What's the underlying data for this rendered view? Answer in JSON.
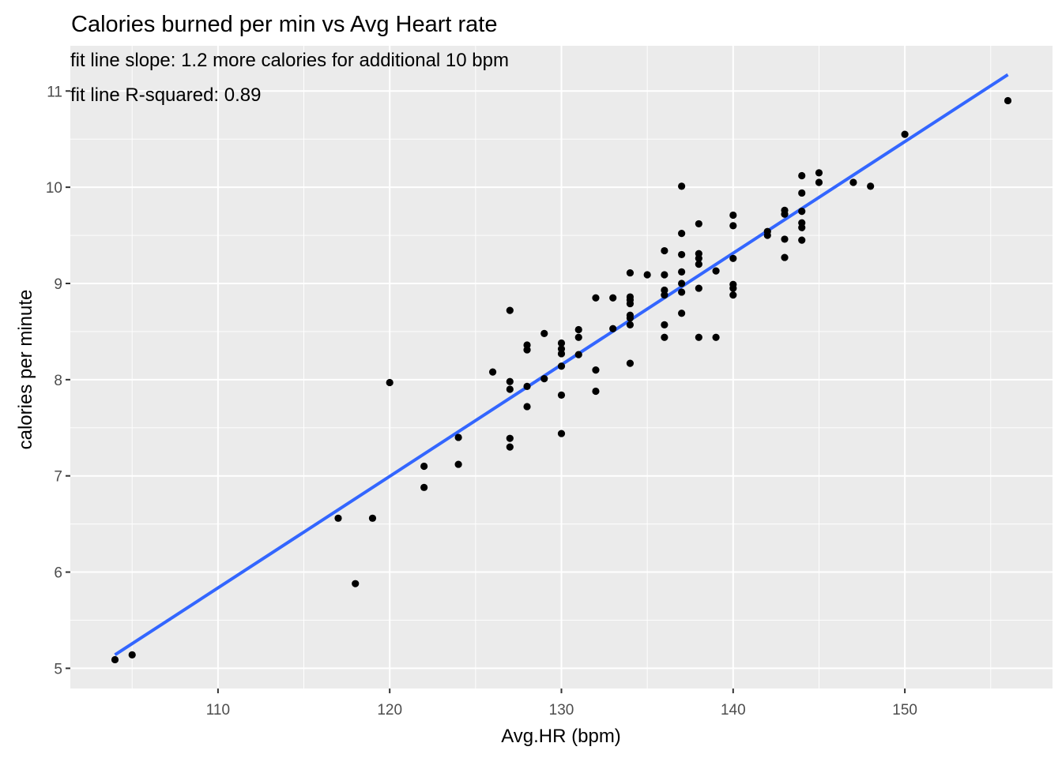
{
  "chart_data": {
    "type": "scatter",
    "title": "Calories burned per min vs Avg Heart rate",
    "annotations": [
      "fit line slope:  1.2  more calories for additional 10 bpm",
      "fit line R-squared: 0.89"
    ],
    "xlabel": "Avg.HR (bpm)",
    "ylabel": "calories per minute",
    "xlim": [
      101.4,
      158.6
    ],
    "ylim": [
      4.79,
      11.47
    ],
    "x_ticks": [
      110,
      120,
      130,
      140,
      150
    ],
    "y_ticks": [
      5,
      6,
      7,
      8,
      9,
      10,
      11
    ],
    "grid": true,
    "legend": "none",
    "colors": {
      "panel_background": "#ebebeb",
      "grid": "#ffffff",
      "points": "#000000",
      "fit_line": "#3366ff"
    },
    "fit_line": {
      "x": [
        104,
        156
      ],
      "y": [
        5.14,
        11.17
      ]
    },
    "points": [
      {
        "x": 104,
        "y": 5.09
      },
      {
        "x": 105,
        "y": 5.14
      },
      {
        "x": 117,
        "y": 6.56
      },
      {
        "x": 118,
        "y": 5.88
      },
      {
        "x": 119,
        "y": 6.56
      },
      {
        "x": 120,
        "y": 7.97
      },
      {
        "x": 122,
        "y": 7.1
      },
      {
        "x": 122,
        "y": 6.88
      },
      {
        "x": 124,
        "y": 7.4
      },
      {
        "x": 124,
        "y": 7.12
      },
      {
        "x": 126,
        "y": 8.08
      },
      {
        "x": 127,
        "y": 8.72
      },
      {
        "x": 127,
        "y": 7.98
      },
      {
        "x": 127,
        "y": 7.9
      },
      {
        "x": 127,
        "y": 7.39
      },
      {
        "x": 127,
        "y": 7.3
      },
      {
        "x": 128,
        "y": 8.36
      },
      {
        "x": 128,
        "y": 8.31
      },
      {
        "x": 128,
        "y": 7.93
      },
      {
        "x": 128,
        "y": 7.72
      },
      {
        "x": 129,
        "y": 8.48
      },
      {
        "x": 129,
        "y": 8.01
      },
      {
        "x": 130,
        "y": 8.38
      },
      {
        "x": 130,
        "y": 8.32
      },
      {
        "x": 130,
        "y": 8.27
      },
      {
        "x": 130,
        "y": 8.14
      },
      {
        "x": 130,
        "y": 7.84
      },
      {
        "x": 130,
        "y": 7.44
      },
      {
        "x": 131,
        "y": 8.52
      },
      {
        "x": 131,
        "y": 8.44
      },
      {
        "x": 131,
        "y": 8.26
      },
      {
        "x": 132,
        "y": 8.85
      },
      {
        "x": 132,
        "y": 8.1
      },
      {
        "x": 132,
        "y": 7.88
      },
      {
        "x": 133,
        "y": 8.85
      },
      {
        "x": 133,
        "y": 8.53
      },
      {
        "x": 134,
        "y": 9.11
      },
      {
        "x": 134,
        "y": 8.86
      },
      {
        "x": 134,
        "y": 8.83
      },
      {
        "x": 134,
        "y": 8.79
      },
      {
        "x": 134,
        "y": 8.67
      },
      {
        "x": 134,
        "y": 8.64
      },
      {
        "x": 134,
        "y": 8.57
      },
      {
        "x": 134,
        "y": 8.17
      },
      {
        "x": 135,
        "y": 9.09
      },
      {
        "x": 136,
        "y": 9.34
      },
      {
        "x": 136,
        "y": 9.09
      },
      {
        "x": 136,
        "y": 8.93
      },
      {
        "x": 136,
        "y": 8.88
      },
      {
        "x": 136,
        "y": 8.57
      },
      {
        "x": 136,
        "y": 8.44
      },
      {
        "x": 137,
        "y": 10.01
      },
      {
        "x": 137,
        "y": 9.52
      },
      {
        "x": 137,
        "y": 9.3
      },
      {
        "x": 137,
        "y": 9.12
      },
      {
        "x": 137,
        "y": 9.0
      },
      {
        "x": 137,
        "y": 8.91
      },
      {
        "x": 137,
        "y": 8.69
      },
      {
        "x": 138,
        "y": 9.62
      },
      {
        "x": 138,
        "y": 9.31
      },
      {
        "x": 138,
        "y": 9.26
      },
      {
        "x": 138,
        "y": 9.2
      },
      {
        "x": 138,
        "y": 8.95
      },
      {
        "x": 138,
        "y": 8.44
      },
      {
        "x": 139,
        "y": 9.13
      },
      {
        "x": 139,
        "y": 8.44
      },
      {
        "x": 140,
        "y": 9.71
      },
      {
        "x": 140,
        "y": 9.6
      },
      {
        "x": 140,
        "y": 9.26
      },
      {
        "x": 140,
        "y": 8.99
      },
      {
        "x": 140,
        "y": 8.95
      },
      {
        "x": 140,
        "y": 8.88
      },
      {
        "x": 142,
        "y": 9.54
      },
      {
        "x": 142,
        "y": 9.5
      },
      {
        "x": 143,
        "y": 9.76
      },
      {
        "x": 143,
        "y": 9.72
      },
      {
        "x": 143,
        "y": 9.46
      },
      {
        "x": 143,
        "y": 9.27
      },
      {
        "x": 144,
        "y": 10.12
      },
      {
        "x": 144,
        "y": 9.94
      },
      {
        "x": 144,
        "y": 9.75
      },
      {
        "x": 144,
        "y": 9.63
      },
      {
        "x": 144,
        "y": 9.58
      },
      {
        "x": 144,
        "y": 9.45
      },
      {
        "x": 145,
        "y": 10.15
      },
      {
        "x": 145,
        "y": 10.05
      },
      {
        "x": 147,
        "y": 10.05
      },
      {
        "x": 148,
        "y": 10.01
      },
      {
        "x": 150,
        "y": 10.55
      },
      {
        "x": 156,
        "y": 10.9
      }
    ]
  }
}
